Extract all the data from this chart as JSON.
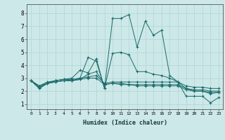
{
  "xlabel": "Humidex (Indice chaleur)",
  "ylabel": "",
  "background_color": "#cde8e8",
  "line_color": "#1a6b6b",
  "grid_color": "#afd4d4",
  "xlim": [
    -0.5,
    23.5
  ],
  "ylim": [
    0.6,
    8.7
  ],
  "xticks": [
    0,
    1,
    2,
    3,
    4,
    5,
    6,
    7,
    8,
    9,
    10,
    11,
    12,
    13,
    14,
    15,
    16,
    17,
    18,
    19,
    20,
    21,
    22,
    23
  ],
  "yticks": [
    1,
    2,
    3,
    4,
    5,
    6,
    7,
    8
  ],
  "series": [
    [
      2.8,
      2.2,
      2.6,
      2.8,
      2.9,
      3.0,
      3.6,
      3.4,
      4.5,
      2.2,
      7.6,
      7.6,
      7.9,
      5.4,
      7.4,
      6.3,
      6.7,
      3.2,
      2.7,
      1.6,
      1.6,
      1.6,
      1.1,
      1.5
    ],
    [
      2.8,
      2.2,
      2.6,
      2.8,
      2.9,
      2.8,
      3.0,
      4.6,
      4.3,
      2.2,
      4.9,
      5.0,
      4.8,
      3.5,
      3.5,
      3.3,
      3.2,
      3.0,
      2.7,
      2.2,
      2.0,
      2.0,
      1.8,
      1.9
    ],
    [
      2.8,
      2.4,
      2.6,
      2.7,
      2.8,
      2.8,
      2.9,
      3.3,
      3.5,
      2.5,
      2.6,
      2.5,
      2.5,
      2.4,
      2.4,
      2.4,
      2.4,
      2.4,
      2.4,
      2.1,
      2.0,
      2.0,
      1.9,
      1.9
    ],
    [
      2.8,
      2.4,
      2.7,
      2.8,
      2.9,
      2.9,
      3.0,
      3.1,
      3.2,
      2.6,
      2.7,
      2.7,
      2.7,
      2.7,
      2.7,
      2.7,
      2.7,
      2.7,
      2.7,
      2.4,
      2.3,
      2.3,
      2.2,
      2.2
    ],
    [
      2.8,
      2.3,
      2.6,
      2.7,
      2.8,
      2.8,
      2.9,
      3.0,
      3.0,
      2.5,
      2.6,
      2.6,
      2.5,
      2.5,
      2.5,
      2.5,
      2.5,
      2.5,
      2.5,
      2.2,
      2.1,
      2.1,
      2.0,
      2.0
    ]
  ]
}
